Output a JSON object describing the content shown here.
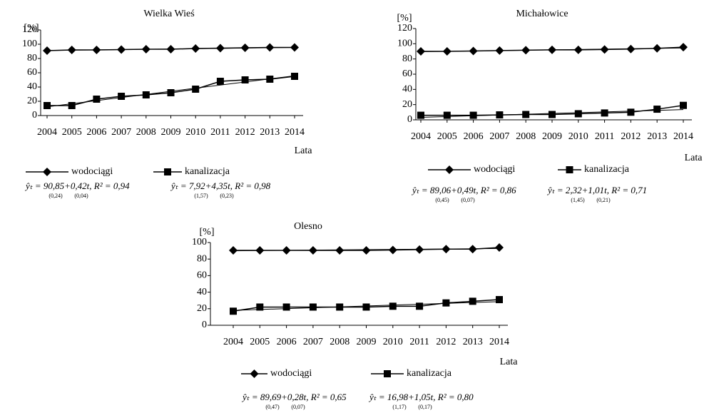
{
  "chart_data": [
    {
      "type": "line",
      "title": "Wielka Wieś",
      "y_label": "[%]",
      "x_label": "Lata",
      "categories": [
        "2004",
        "2005",
        "2006",
        "2007",
        "2008",
        "2009",
        "2010",
        "2011",
        "2012",
        "2013",
        "2014"
      ],
      "ylim": [
        0,
        120
      ],
      "yticks": [
        0,
        20,
        40,
        60,
        80,
        100,
        120
      ],
      "series": [
        {
          "name": "wodociągi",
          "color": "#000000",
          "marker": "diamond",
          "values": [
            91,
            92,
            92,
            92.5,
            93,
            93,
            94,
            94.5,
            95,
            95.5,
            95.5
          ],
          "trend": {
            "intercept": 90.85,
            "slope": 0.42
          },
          "equation": "ŷₜ = 90,85+0,42t,  R² = 0,94",
          "errors": [
            "(0,24)",
            "(0,04)"
          ]
        },
        {
          "name": "kanalizacja",
          "color": "#000000",
          "marker": "square",
          "values": [
            14,
            14,
            23,
            27,
            29,
            32,
            37,
            48,
            50,
            51,
            55
          ],
          "trend": {
            "intercept": 7.92,
            "slope": 4.35
          },
          "equation": "ŷₜ = 7,92+4,35t,  R² = 0,98",
          "errors": [
            "(1,57)",
            "(0,23)"
          ]
        }
      ]
    },
    {
      "type": "line",
      "title": "Michałowice",
      "y_label": "[%]",
      "x_label": "Lata",
      "categories": [
        "2004",
        "2005",
        "2006",
        "2007",
        "2008",
        "2009",
        "2010",
        "2011",
        "2012",
        "2013",
        "2014"
      ],
      "ylim": [
        0,
        120
      ],
      "yticks": [
        0,
        20,
        40,
        60,
        80,
        100,
        120
      ],
      "series": [
        {
          "name": "wodociągi",
          "color": "#000000",
          "marker": "diamond",
          "values": [
            90,
            90,
            90.5,
            91,
            91.5,
            92,
            92,
            92.5,
            93,
            94,
            95.5
          ],
          "trend": {
            "intercept": 89.06,
            "slope": 0.49
          },
          "equation": "ŷₜ = 89,06+0,49t,  R² = 0,86",
          "errors": [
            "(0,45)",
            "(0,07)"
          ]
        },
        {
          "name": "kanalizacja",
          "color": "#000000",
          "marker": "square",
          "values": [
            6,
            6,
            6,
            6.5,
            7,
            7,
            8,
            9,
            10,
            14,
            19
          ],
          "trend": {
            "intercept": 2.32,
            "slope": 1.01
          },
          "equation": "ŷₜ = 2,32+1,01t,  R² = 0,71",
          "errors": [
            "(1,45)",
            "(0,21)"
          ]
        }
      ]
    },
    {
      "type": "line",
      "title": "Olesno",
      "y_label": "[%]",
      "x_label": "Lata",
      "categories": [
        "2004",
        "2005",
        "2006",
        "2007",
        "2008",
        "2009",
        "2010",
        "2011",
        "2012",
        "2013",
        "2014"
      ],
      "ylim": [
        0,
        100
      ],
      "yticks": [
        0,
        20,
        40,
        60,
        80,
        100
      ],
      "series": [
        {
          "name": "wodociągi",
          "color": "#000000",
          "marker": "diamond",
          "values": [
            90.5,
            90.5,
            90.5,
            90.5,
            90.5,
            90.5,
            91,
            91.5,
            92,
            92,
            94
          ],
          "trend": {
            "intercept": 89.69,
            "slope": 0.28
          },
          "equation": "ŷₜ = 89,69+0,28t,  R² = 0,65",
          "errors": [
            "(0,47)",
            "(0,07)"
          ]
        },
        {
          "name": "kanalizacja",
          "color": "#000000",
          "marker": "square",
          "values": [
            17,
            22,
            22,
            22,
            22,
            22,
            23,
            23,
            27,
            29,
            31
          ],
          "trend": {
            "intercept": 16.98,
            "slope": 1.05
          },
          "equation": "ŷₜ = 16,98+1,05t,  R² = 0,80",
          "errors": [
            "(1,17)",
            "(0,17)"
          ]
        }
      ]
    }
  ]
}
